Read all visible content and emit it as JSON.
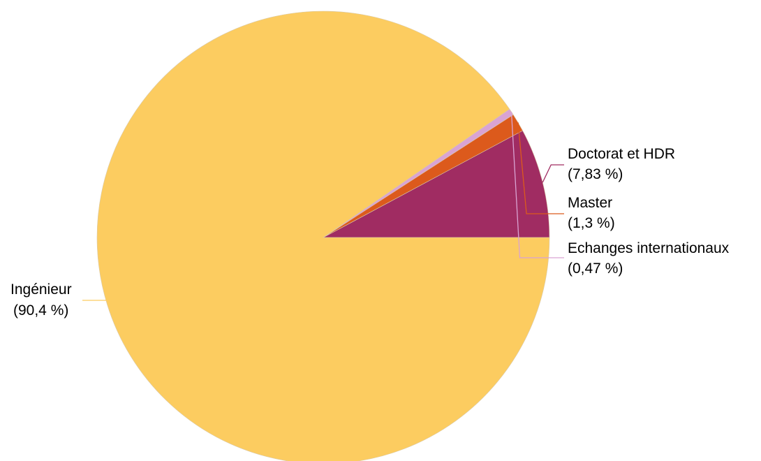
{
  "chart_data": {
    "type": "pie",
    "title": "",
    "start": "three o'clock, counter-clockwise for smaller slices",
    "slices": [
      {
        "label": "Doctorat et HDR",
        "percent_label": "(7,83 %)",
        "value": 7.83,
        "color": "#a02c62",
        "line_color": "#a02c62"
      },
      {
        "label": "Master",
        "percent_label": "(1,3 %)",
        "value": 1.3,
        "color": "#dc5a1c",
        "line_color": "#dc5a1c"
      },
      {
        "label": "Echanges internationaux",
        "percent_label": "(0,47 %)",
        "value": 0.47,
        "color": "#d9a3d3",
        "line_color": "#d9a3d3"
      },
      {
        "label": "Ingénieur",
        "percent_label": "(90,4 %)",
        "value": 90.4,
        "color": "#fccc60",
        "line_color": "#fccc60"
      }
    ]
  }
}
